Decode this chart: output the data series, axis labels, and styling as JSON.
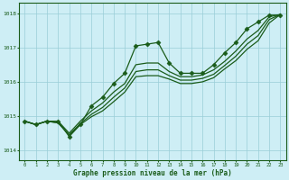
{
  "title": "Graphe pression niveau de la mer (hPa)",
  "background_color": "#ceeef5",
  "grid_color": "#9acdd8",
  "line_color": "#1a5c1a",
  "xlim": [
    -0.5,
    23.5
  ],
  "ylim": [
    1013.7,
    1018.3
  ],
  "yticks": [
    1014,
    1015,
    1016,
    1017,
    1018
  ],
  "xticks": [
    0,
    1,
    2,
    3,
    4,
    5,
    6,
    7,
    8,
    9,
    10,
    11,
    12,
    13,
    14,
    15,
    16,
    17,
    18,
    19,
    20,
    21,
    22,
    23
  ],
  "series": [
    {
      "x": [
        0,
        1,
        2,
        3,
        4,
        5,
        6,
        7,
        8,
        9,
        10,
        11,
        12,
        13,
        14,
        15,
        16,
        17,
        18,
        19,
        20,
        21,
        22,
        23
      ],
      "y": [
        1014.85,
        1014.75,
        1014.85,
        1014.85,
        1014.4,
        1014.75,
        1015.3,
        1015.55,
        1015.95,
        1016.25,
        1017.05,
        1017.1,
        1017.15,
        1016.55,
        1016.25,
        1016.25,
        1016.25,
        1016.5,
        1016.85,
        1017.15,
        1017.55,
        1017.75,
        1017.95,
        1017.95
      ],
      "marker": "D",
      "markersize": 2.5,
      "lw": 0.9
    },
    {
      "x": [
        0,
        1,
        2,
        3,
        4,
        5,
        6,
        7,
        8,
        9,
        10,
        11,
        12,
        13,
        14,
        15,
        16,
        17,
        18,
        19,
        20,
        21,
        22,
        23
      ],
      "y": [
        1014.85,
        1014.75,
        1014.85,
        1014.85,
        1014.5,
        1014.85,
        1015.15,
        1015.38,
        1015.7,
        1015.95,
        1016.5,
        1016.55,
        1016.55,
        1016.3,
        1016.15,
        1016.15,
        1016.2,
        1016.35,
        1016.6,
        1016.9,
        1017.25,
        1017.5,
        1017.9,
        1017.97
      ],
      "marker": null,
      "markersize": 0,
      "lw": 0.9
    },
    {
      "x": [
        0,
        1,
        2,
        3,
        4,
        5,
        6,
        7,
        8,
        9,
        10,
        11,
        12,
        13,
        14,
        15,
        16,
        17,
        18,
        19,
        20,
        21,
        22,
        23
      ],
      "y": [
        1014.85,
        1014.75,
        1014.85,
        1014.8,
        1014.45,
        1014.78,
        1015.05,
        1015.25,
        1015.55,
        1015.82,
        1016.3,
        1016.35,
        1016.35,
        1016.18,
        1016.05,
        1016.05,
        1016.1,
        1016.22,
        1016.48,
        1016.75,
        1017.1,
        1017.35,
        1017.82,
        1017.97
      ],
      "marker": null,
      "markersize": 0,
      "lw": 0.9
    },
    {
      "x": [
        0,
        1,
        2,
        3,
        4,
        5,
        6,
        7,
        8,
        9,
        10,
        11,
        12,
        13,
        14,
        15,
        16,
        17,
        18,
        19,
        20,
        21,
        22,
        23
      ],
      "y": [
        1014.85,
        1014.75,
        1014.85,
        1014.8,
        1014.45,
        1014.75,
        1014.98,
        1015.15,
        1015.42,
        1015.7,
        1016.15,
        1016.18,
        1016.18,
        1016.08,
        1015.95,
        1015.95,
        1016.0,
        1016.12,
        1016.38,
        1016.62,
        1016.95,
        1017.2,
        1017.72,
        1017.97
      ],
      "marker": null,
      "markersize": 0,
      "lw": 0.9
    }
  ]
}
